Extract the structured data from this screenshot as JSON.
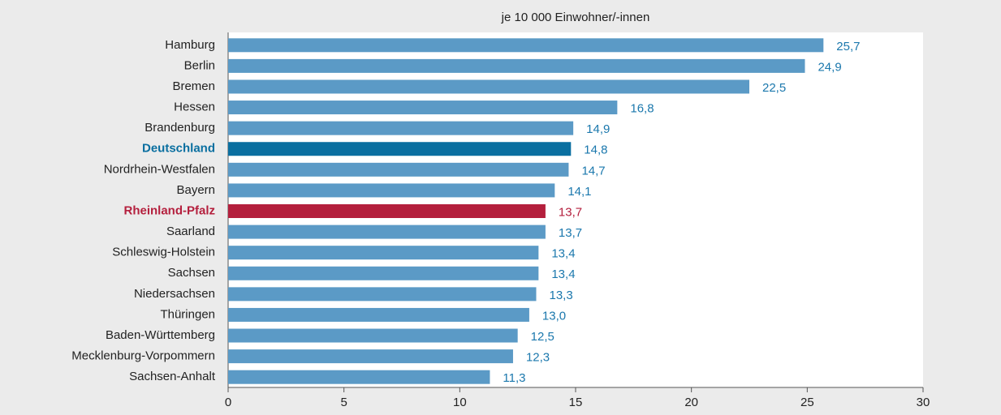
{
  "chart_data": {
    "type": "bar",
    "orientation": "horizontal",
    "subtitle": "je 10 000 Einwohner/-innen",
    "categories": [
      "Hamburg",
      "Berlin",
      "Bremen",
      "Hessen",
      "Brandenburg",
      "Deutschland",
      "Nordrhein-Westfalen",
      "Bayern",
      "Rheinland-Pfalz",
      "Saarland",
      "Schleswig-Holstein",
      "Sachsen",
      "Niedersachsen",
      "Thüringen",
      "Baden-Württemberg",
      "Mecklenburg-Vorpommern",
      "Sachsen-Anhalt"
    ],
    "values": [
      25.7,
      24.9,
      22.5,
      16.8,
      14.9,
      14.8,
      14.7,
      14.1,
      13.7,
      13.7,
      13.4,
      13.4,
      13.3,
      13.0,
      12.5,
      12.3,
      11.3
    ],
    "value_labels": [
      "25,7",
      "24,9",
      "22,5",
      "16,8",
      "14,9",
      "14,8",
      "14,7",
      "14,1",
      "13,7",
      "13,7",
      "13,4",
      "13,4",
      "13,3",
      "13,0",
      "12,5",
      "12,3",
      "11,3"
    ],
    "colors": [
      "#5b9ac6",
      "#5b9ac6",
      "#5b9ac6",
      "#5b9ac6",
      "#5b9ac6",
      "#0a6fa0",
      "#5b9ac6",
      "#5b9ac6",
      "#b41f3d",
      "#5b9ac6",
      "#5b9ac6",
      "#5b9ac6",
      "#5b9ac6",
      "#5b9ac6",
      "#5b9ac6",
      "#5b9ac6",
      "#5b9ac6"
    ],
    "xlim": [
      0,
      30
    ],
    "xticks": [
      0,
      5,
      10,
      15,
      20,
      25,
      30
    ]
  }
}
